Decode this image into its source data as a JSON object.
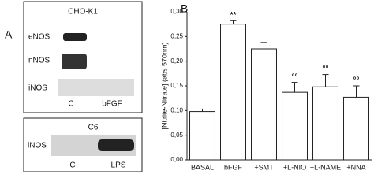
{
  "panel_a": {
    "label": "A",
    "blot1": {
      "title": "CHO-K1",
      "rows": [
        "eNOS",
        "nNOS",
        "iNOS"
      ],
      "lanes": [
        "C",
        "bFGF"
      ]
    },
    "blot2": {
      "title": "C6",
      "rows": [
        "iNOS"
      ],
      "lanes": [
        "C",
        "LPS"
      ]
    }
  },
  "chart_data": {
    "type": "bar",
    "panel_label": "B",
    "y_label": "[Nitrite-Nitrate] (abs 570nm)",
    "categories": [
      "BASAL",
      "bFGF",
      "+SMT",
      "+L-NIO",
      "+L-NAME",
      "+NNA"
    ],
    "values": [
      0.098,
      0.275,
      0.225,
      0.137,
      0.148,
      0.127
    ],
    "errors": [
      0.005,
      0.007,
      0.013,
      0.02,
      0.025,
      0.023
    ],
    "annotations": [
      null,
      "**",
      null,
      "°°",
      "°°",
      "°°"
    ],
    "color": "#ffffff",
    "ylim": [
      0,
      0.3
    ],
    "yticks": [
      {
        "value": 0,
        "label": "0,00"
      },
      {
        "value": 0.05,
        "label": "0,05"
      },
      {
        "value": 0.1,
        "label": "0,10"
      },
      {
        "value": 0.15,
        "label": "0,15"
      },
      {
        "value": 0.2,
        "label": "0,20"
      },
      {
        "value": 0.25,
        "label": "0,25"
      },
      {
        "value": 0.3,
        "label": "0,30"
      }
    ]
  }
}
